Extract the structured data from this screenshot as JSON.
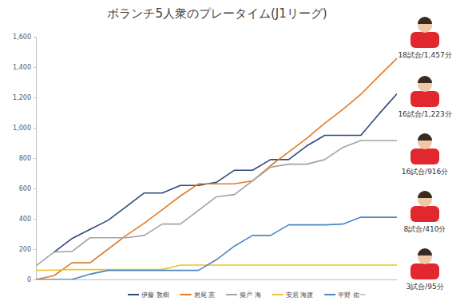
{
  "chart_data": {
    "type": "line",
    "title": "ボランチ5人衆のプレータイム(J1リーグ)",
    "x": [
      0,
      1,
      2,
      3,
      4,
      5,
      6,
      7,
      8,
      9,
      10,
      11,
      12,
      13,
      14,
      15,
      16,
      17,
      18,
      19,
      20
    ],
    "xlim": [
      0,
      20
    ],
    "ylim": [
      0,
      1600
    ],
    "yticks": [
      0,
      200,
      400,
      600,
      800,
      {
        "value": 1000,
        "label": "1,000"
      },
      {
        "value": 1200,
        "label": "1,200"
      },
      {
        "value": 1400,
        "label": "1,400"
      },
      {
        "value": 1600,
        "label": "1,600"
      }
    ],
    "grid": false,
    "tick_labels": "y",
    "legend": "bottom",
    "series": [
      {
        "name": "伊藤 敦樹",
        "color": "#2e4a7a",
        "values": [
          null,
          180,
          270,
          330,
          390,
          480,
          570,
          570,
          620,
          620,
          640,
          720,
          720,
          790,
          790,
          880,
          950,
          950,
          950,
          1090,
          1223
        ]
      },
      {
        "name": "岩尾 憲",
        "color": "#e07b29",
        "values": [
          0,
          25,
          110,
          110,
          200,
          290,
          370,
          460,
          550,
          630,
          630,
          630,
          650,
          750,
          840,
          930,
          1030,
          1120,
          1220,
          1340,
          1457
        ]
      },
      {
        "name": "柴戸 海",
        "color": "#a3a3a3",
        "values": [
          90,
          180,
          185,
          275,
          275,
          275,
          290,
          365,
          365,
          455,
          545,
          560,
          650,
          740,
          760,
          760,
          790,
          870,
          916,
          916,
          916
        ]
      },
      {
        "name": "安居 海渡",
        "color": "#f2c12e",
        "values": [
          60,
          62,
          65,
          65,
          65,
          65,
          65,
          65,
          95,
          95,
          95,
          95,
          95,
          95,
          95,
          95,
          95,
          95,
          95,
          95,
          95
        ]
      },
      {
        "name": "平野 佑一",
        "color": "#4a86c5",
        "values": [
          0,
          0,
          0,
          35,
          60,
          60,
          60,
          60,
          60,
          60,
          130,
          220,
          290,
          290,
          360,
          360,
          360,
          365,
          410,
          410,
          410
        ]
      }
    ],
    "annotations": [
      "18試合/1,457分",
      "16試合/1,223分",
      "16試合/916分",
      "8試合/410分",
      "3試合/95分"
    ]
  }
}
